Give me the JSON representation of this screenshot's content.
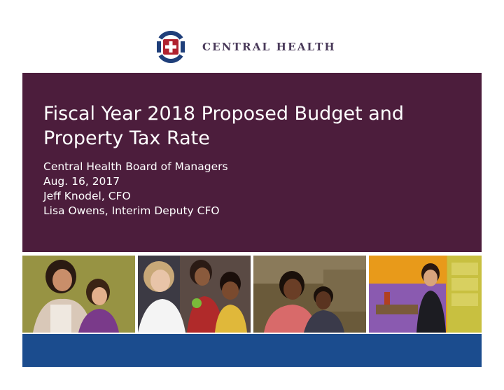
{
  "logo": {
    "text": "CENTRAL HEALTH",
    "icon": "cross-in-circle-icon",
    "colors": {
      "ring": "#1f3f7a",
      "cross_bg": "#b0212e"
    }
  },
  "slide": {
    "title_lines": [
      "Fiscal Year 2018 Proposed Budget and",
      "Property Tax Rate"
    ],
    "subtitle_lines": [
      "Central Health Board of Managers",
      "Aug. 16, 2017",
      "Jeff Knodel, CFO",
      "Lisa Owens, Interim Deputy CFO"
    ],
    "panel_color": "#4c1d3c",
    "footer_color": "#1b4c8e"
  }
}
